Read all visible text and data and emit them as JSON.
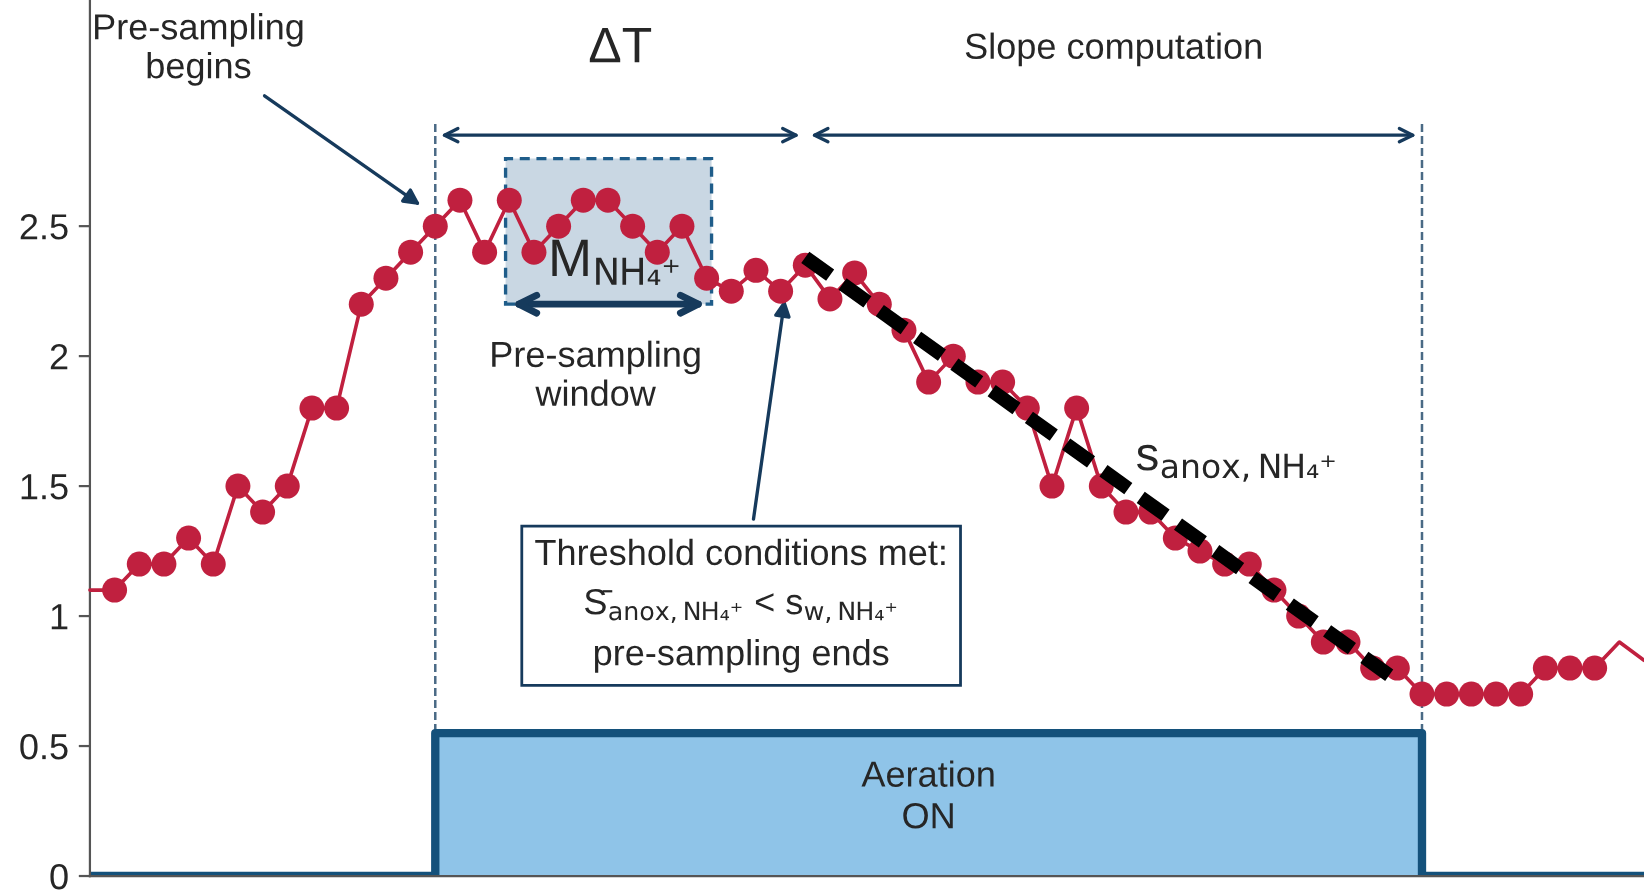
{
  "chart_data": {
    "type": "line",
    "categories": [
      null,
      null,
      null,
      null,
      null,
      null,
      null,
      null,
      null,
      null,
      null,
      null,
      null,
      null,
      null,
      null,
      null,
      null,
      null,
      null,
      null,
      null,
      null,
      null,
      null,
      null,
      null,
      null,
      null,
      null,
      null,
      null,
      null,
      null,
      null,
      null,
      null,
      null,
      null,
      null,
      null,
      null,
      null,
      null,
      null,
      null,
      null,
      null,
      null,
      null,
      null,
      null,
      null,
      null,
      null,
      null,
      null,
      null,
      null,
      null,
      null,
      null,
      null,
      null
    ],
    "ylim": [
      0,
      3.37
    ],
    "yticks": [
      0,
      0.5,
      1,
      1.5,
      2,
      2.5
    ],
    "tick_labels": "y",
    "grid": false,
    "series": [
      {
        "type": "area",
        "color": "#8fc4e8",
        "values": [
          0,
          0,
          0,
          0,
          0,
          0,
          0,
          0,
          0,
          0,
          0,
          0,
          0,
          0,
          0.55,
          0.55,
          0.55,
          0.55,
          0.55,
          0.55,
          0.55,
          0.55,
          0.55,
          0.55,
          0.55,
          0.55,
          0.55,
          0.55,
          0.55,
          0.55,
          0.55,
          0.55,
          0.55,
          0.55,
          0.55,
          0.55,
          0.55,
          0.55,
          0.55,
          0.55,
          0.55,
          0.55,
          0.55,
          0.55,
          0.55,
          0.55,
          0.55,
          0.55,
          0.55,
          0.55,
          0.55,
          0.55,
          0.55,
          0.55,
          0,
          0,
          0,
          0,
          0,
          0,
          0,
          0,
          0,
          0
        ]
      },
      {
        "color": "#c0203f",
        "marker": "none",
        "line_style": "solid",
        "values": [
          1.1,
          1.1,
          1.2,
          1.2,
          1.3,
          1.2,
          1.5,
          1.4,
          1.5,
          1.8,
          1.8,
          2.2,
          2.3,
          2.4,
          2.5,
          2.6,
          2.4,
          2.6,
          2.4,
          2.5,
          2.6,
          2.6,
          2.5,
          2.4,
          2.5,
          2.3,
          2.25,
          2.33,
          2.25,
          2.35,
          2.22,
          2.32,
          2.2,
          2.1,
          1.9,
          2.0,
          1.9,
          1.9,
          1.8,
          1.5,
          1.8,
          1.5,
          1.4,
          1.4,
          1.3,
          1.25,
          1.2,
          1.2,
          1.1,
          1.0,
          0.9,
          0.9,
          0.8,
          0.8,
          0.7,
          0.7,
          0.7,
          0.7,
          0.7,
          0.8,
          0.8,
          0.8,
          0.9,
          0.83
        ]
      },
      {
        "type": "scatter",
        "color": "#c0203f",
        "marker": "circle",
        "values": [
          null,
          1.1,
          1.2,
          1.2,
          1.3,
          1.2,
          1.5,
          1.4,
          1.5,
          1.8,
          1.8,
          2.2,
          2.3,
          2.4,
          2.5,
          2.6,
          2.4,
          2.6,
          2.4,
          2.5,
          2.6,
          2.6,
          2.5,
          2.4,
          2.5,
          2.3,
          2.25,
          2.33,
          2.25,
          2.35,
          2.22,
          2.32,
          2.2,
          2.1,
          1.9,
          2.0,
          1.9,
          1.9,
          1.8,
          1.5,
          1.8,
          1.5,
          1.4,
          1.4,
          1.3,
          1.25,
          1.2,
          1.2,
          1.1,
          1.0,
          0.9,
          0.9,
          0.8,
          0.8,
          0.7,
          0.7,
          0.7,
          0.7,
          0.7,
          0.8,
          0.8,
          0.8,
          null,
          null
        ]
      },
      {
        "color": "#000000",
        "marker": "none",
        "line_style": "dashed",
        "values": [
          null,
          null,
          null,
          null,
          null,
          null,
          null,
          null,
          null,
          null,
          null,
          null,
          null,
          null,
          null,
          null,
          null,
          null,
          null,
          null,
          null,
          null,
          null,
          null,
          null,
          null,
          null,
          null,
          null,
          2.38,
          null,
          null,
          null,
          null,
          null,
          null,
          null,
          null,
          null,
          null,
          null,
          null,
          null,
          null,
          null,
          null,
          null,
          null,
          null,
          null,
          null,
          null,
          null,
          0.75,
          null,
          null,
          null,
          null,
          null,
          null,
          null,
          null,
          null,
          null
        ]
      }
    ],
    "annotations": [
      "Pre-sampling\nbegins",
      "ΔT",
      "Slope computation",
      "M$_{NH₄⁺}$",
      "Pre-sampling\nwindow",
      "s$_{anox,NH₄⁺}$",
      "Threshold conditions met:\nS̄$_{anox,NH₄⁺}$ < s$_{w,NH₄⁺}$\npre-sampling ends",
      "Aeration\nON"
    ]
  }
}
